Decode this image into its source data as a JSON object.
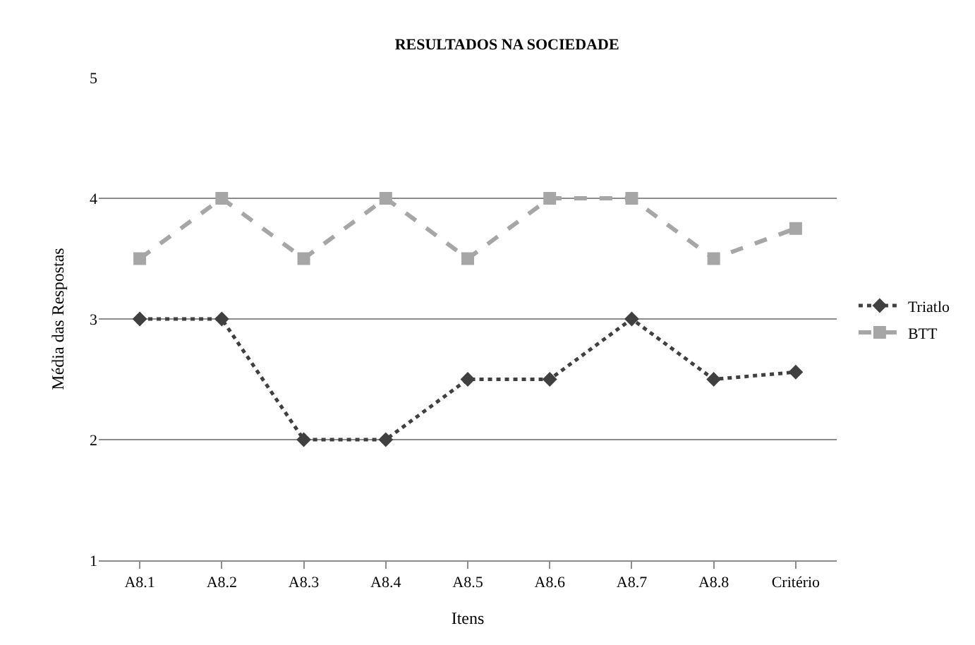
{
  "chart_data": {
    "type": "line",
    "title": "RESULTADOS NA SOCIEDADE",
    "xlabel": "Itens",
    "ylabel": "Média das Respostas",
    "categories": [
      "A8.1",
      "A8.2",
      "A8.3",
      "A8.4",
      "A8.5",
      "A8.6",
      "A8.7",
      "A8.8",
      "Critério"
    ],
    "series": [
      {
        "name": "Triatlo",
        "color": "#404040",
        "marker": "diamond",
        "line_style": "dotted",
        "values": [
          3,
          3,
          2,
          2,
          2.5,
          2.5,
          3,
          2.5,
          2.56
        ]
      },
      {
        "name": "BTT",
        "color": "#a6a6a6",
        "marker": "square",
        "line_style": "dashed",
        "values": [
          3.5,
          4,
          3.5,
          4,
          3.5,
          4,
          4,
          3.5,
          3.75
        ]
      }
    ],
    "ylim": [
      1,
      5
    ],
    "yticks": [
      1,
      2,
      3,
      4,
      5
    ],
    "grid": "y",
    "legend": "right"
  }
}
